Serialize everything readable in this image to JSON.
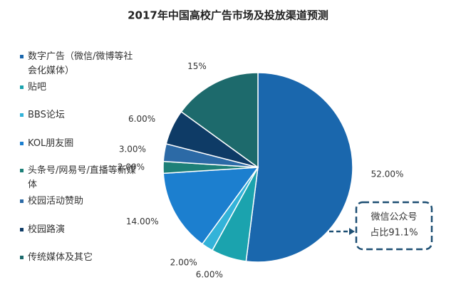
{
  "chart_data": {
    "type": "pie",
    "title": "2017年中国高校广告市场及投放渠道预测",
    "categories": [
      "数字广告（微信/微博等社会化媒体）",
      "贴吧",
      "BBS论坛",
      "KOL朋友圈",
      "头条号/网易号/直播等新媒体",
      "校园活动赞助",
      "校园路演",
      "传统媒体及其它"
    ],
    "values": [
      52,
      6,
      2,
      14,
      2,
      3,
      6,
      15
    ],
    "value_labels": [
      "52.00%",
      "6.00%",
      "2.00%",
      "14.00%",
      "2.00%",
      "3.00%",
      "6.00%",
      "15%"
    ],
    "colors": [
      "#1a67ad",
      "#1ba3ae",
      "#33b3d9",
      "#1c7fcf",
      "#1d8078",
      "#2c6aa6",
      "#0e3b66",
      "#1d6a6c"
    ],
    "legend": "left",
    "annotation": [
      "微信公众号",
      "占比91.1%"
    ]
  }
}
